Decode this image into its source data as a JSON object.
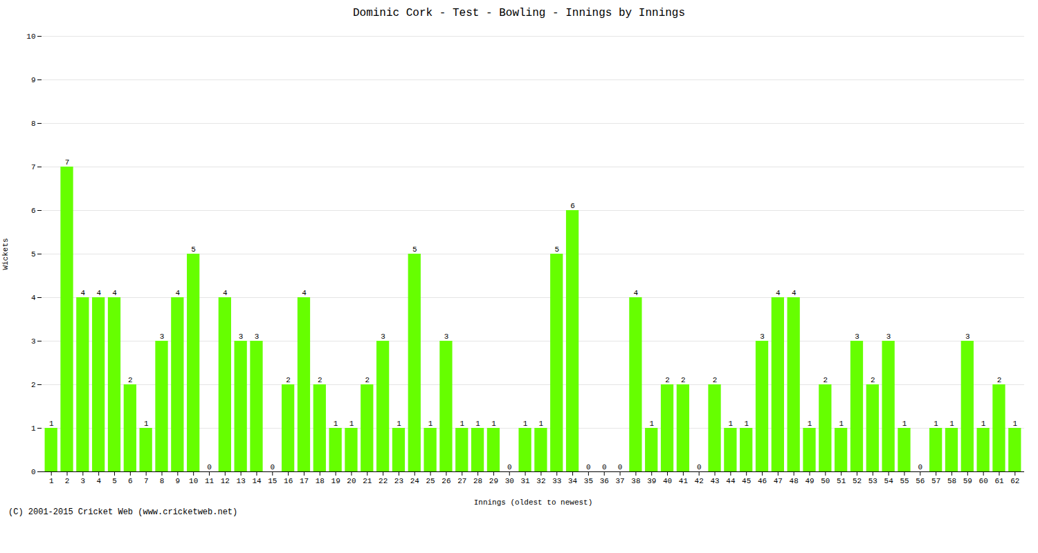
{
  "chart_data": {
    "type": "bar",
    "title": "Dominic Cork - Test - Bowling - Innings by Innings",
    "xlabel": "Innings (oldest to newest)",
    "ylabel": "Wickets",
    "categories": [
      1,
      2,
      3,
      4,
      5,
      6,
      7,
      8,
      9,
      10,
      11,
      12,
      13,
      14,
      15,
      16,
      17,
      18,
      19,
      20,
      21,
      22,
      23,
      24,
      25,
      26,
      27,
      28,
      29,
      30,
      31,
      32,
      33,
      34,
      35,
      36,
      37,
      38,
      39,
      40,
      41,
      42,
      43,
      44,
      45,
      46,
      47,
      48,
      49,
      50,
      51,
      52,
      53,
      54,
      55,
      56,
      57,
      58,
      59,
      60,
      61,
      62
    ],
    "values": [
      1,
      7,
      4,
      4,
      4,
      2,
      1,
      3,
      4,
      5,
      0,
      4,
      3,
      3,
      0,
      2,
      4,
      2,
      1,
      1,
      2,
      3,
      1,
      5,
      1,
      3,
      1,
      1,
      1,
      0,
      1,
      1,
      5,
      6,
      0,
      0,
      0,
      4,
      1,
      2,
      2,
      0,
      2,
      1,
      1,
      3,
      4,
      4,
      1,
      2,
      1,
      3,
      2,
      3,
      1,
      0,
      1,
      1,
      3,
      1,
      2,
      1
    ],
    "color": "#66ff00",
    "ylim": [
      0,
      10
    ],
    "yticks": [
      0,
      1,
      2,
      3,
      4,
      5,
      6,
      7,
      8,
      9,
      10
    ],
    "grid": true,
    "data_labels": true,
    "annotations": [
      "(C) 2001-2015 Cricket Web (www.cricketweb.net)"
    ]
  }
}
